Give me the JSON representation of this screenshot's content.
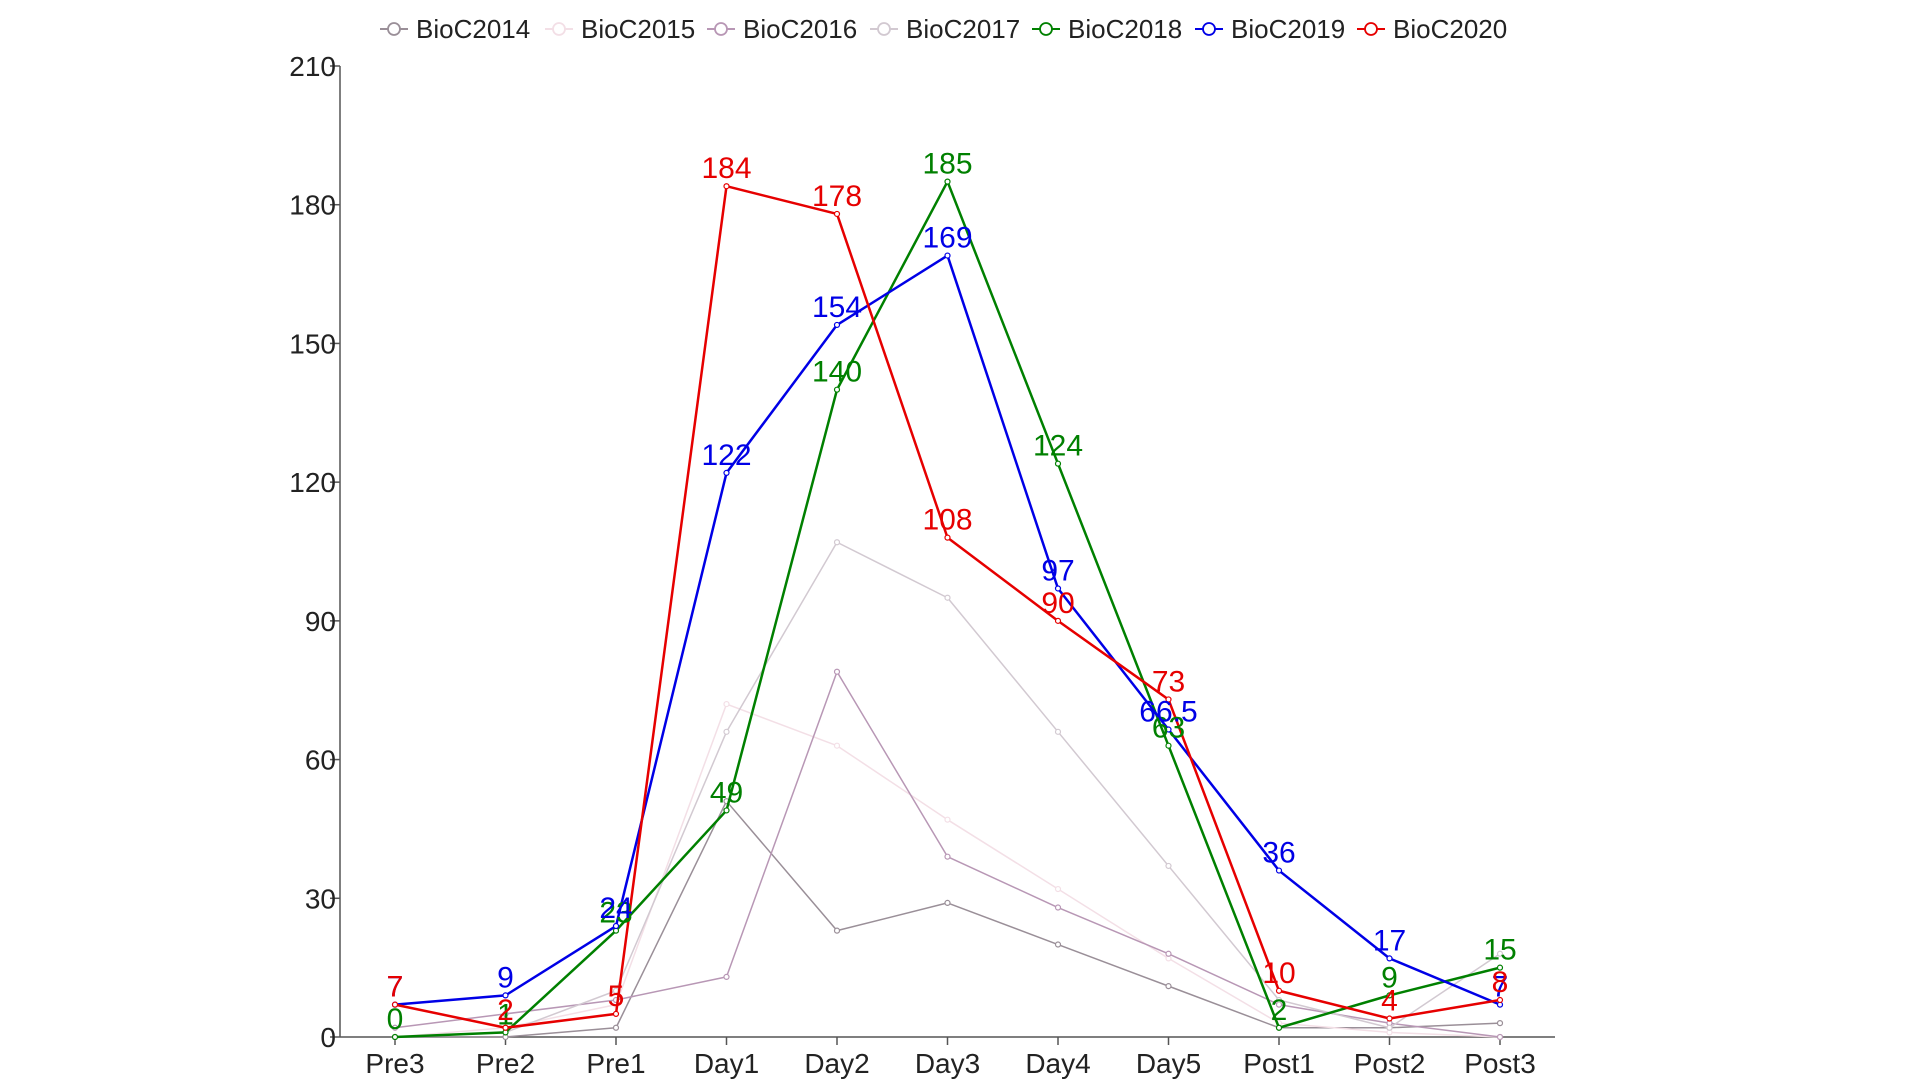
{
  "chart_data": {
    "type": "line",
    "title": "",
    "xlabel": "",
    "ylabel": "",
    "categories": [
      "Pre3",
      "Pre2",
      "Pre1",
      "Day1",
      "Day2",
      "Day3",
      "Day4",
      "Day5",
      "Post1",
      "Post2",
      "Post3"
    ],
    "ylim": [
      0,
      210
    ],
    "yticks": [
      0,
      30,
      60,
      90,
      120,
      150,
      180,
      210
    ],
    "grid": false,
    "legend_position": "top",
    "series": [
      {
        "name": "BioC2014",
        "color": "#9a8f98",
        "show_labels": false,
        "values": [
          0,
          0,
          2,
          51,
          23,
          29,
          20,
          11,
          2,
          2,
          3
        ]
      },
      {
        "name": "BioC2015",
        "color": "#f3dfe6",
        "show_labels": false,
        "values": [
          0,
          2,
          7,
          72,
          63,
          47,
          32,
          17,
          3,
          1,
          0
        ]
      },
      {
        "name": "BioC2016",
        "color": "#b897b5",
        "show_labels": false,
        "values": [
          2,
          5,
          8,
          13,
          79,
          39,
          28,
          18,
          7,
          3,
          0
        ]
      },
      {
        "name": "BioC2017",
        "color": "#d2c9d1",
        "show_labels": false,
        "values": [
          0,
          1,
          10,
          66,
          107,
          95,
          66,
          37,
          8,
          2,
          18
        ]
      },
      {
        "name": "BioC2018",
        "color": "#008000",
        "show_labels": true,
        "values": [
          0,
          1,
          23,
          49,
          140,
          185,
          124,
          63,
          2,
          9,
          15
        ]
      },
      {
        "name": "BioC2019",
        "color": "#0000e6",
        "show_labels": true,
        "values": [
          7,
          9,
          24,
          122,
          154,
          169,
          97,
          66.5,
          36,
          17,
          7
        ]
      },
      {
        "name": "BioC2020",
        "color": "#e60000",
        "show_labels": true,
        "values": [
          7,
          2,
          5,
          184,
          178,
          108,
          90,
          73,
          10,
          4,
          8
        ]
      }
    ]
  }
}
